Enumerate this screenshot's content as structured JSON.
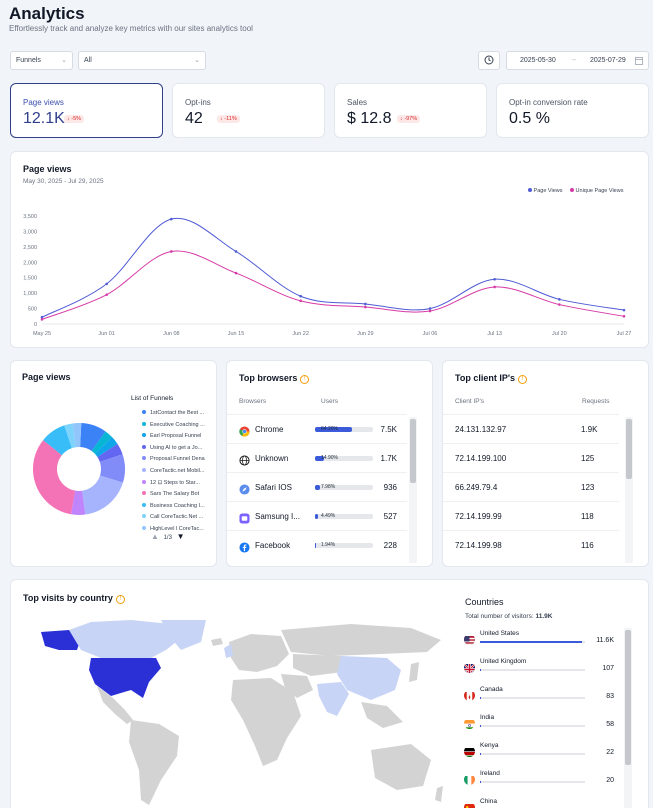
{
  "header": {
    "title": "Analytics",
    "subtitle": "Effortlessly track and analyze key metrics with our sites analytics tool"
  },
  "filters": {
    "type_select": "Funnels",
    "scope_select": "All",
    "date_start": "2025-05-30",
    "date_arrow": "→",
    "date_end": "2025-07-29"
  },
  "kpis": [
    {
      "label": "Page views",
      "value": "12.1K",
      "change": "↓ -5%"
    },
    {
      "label": "Opt-ins",
      "value": "42",
      "change": "↓ -11%"
    },
    {
      "label": "Sales",
      "value": "$ 12.8",
      "change": "↓ -97%"
    },
    {
      "label": "Opt-in conversion rate",
      "value": "0.5 %"
    }
  ],
  "page_views_chart": {
    "title": "Page views",
    "date_range": "May 30, 2025 - Jul 29, 2025",
    "colors": {
      "page_views": "#4f5bd5",
      "unique_page_views": "#d63aa6"
    }
  },
  "chart_data": {
    "type": "line",
    "x": [
      "May 25",
      "Jun 01",
      "Jun 08",
      "Jun 15",
      "Jun 22",
      "Jun 29",
      "Jul 06",
      "Jul 13",
      "Jul 20",
      "Jul 27"
    ],
    "series": [
      {
        "name": "Page Views",
        "values": [
          220,
          1300,
          3400,
          2350,
          900,
          650,
          500,
          1450,
          800,
          450
        ]
      },
      {
        "name": "Unique Page Views",
        "values": [
          150,
          950,
          2350,
          1650,
          750,
          550,
          420,
          1200,
          630,
          250
        ]
      }
    ],
    "y_ticks": [
      "0",
      "500",
      "1,000",
      "1,500",
      "2,000",
      "2,500",
      "3,000",
      "3,500"
    ],
    "ylim": [
      0,
      3500
    ],
    "legend_position": "top-right",
    "grid": false
  },
  "funnels_panel": {
    "title": "Page views",
    "list_title": "List of Funnels",
    "items": [
      {
        "label": "1stContact the Best ...",
        "color": "#3b82f6",
        "share": 0.09
      },
      {
        "label": "Executive Coaching ...",
        "color": "#06b6d4",
        "share": 0.03
      },
      {
        "label": "Earl Proposal Funnel",
        "color": "#0ea5e9",
        "share": 0.03
      },
      {
        "label": "Using AI to get a Jo...",
        "color": "#6366f1",
        "share": 0.04
      },
      {
        "label": "Proposal Funnel Dena",
        "color": "#818cf8",
        "share": 0.1
      },
      {
        "label": "CoreTactic.net Mobil...",
        "color": "#a5b4fc",
        "share": 0.18
      },
      {
        "label": "12 ⊡ Steps to Star...",
        "color": "#c084fc",
        "share": 0.05
      },
      {
        "label": "Sars The Salary Bot",
        "color": "#f472b6",
        "share": 0.33
      },
      {
        "label": "Business Coaching I...",
        "color": "#38bdf8",
        "share": 0.09
      },
      {
        "label": "Call CoreTactic.Net ...",
        "color": "#7dd3fc",
        "share": 0.03
      },
      {
        "label": "HighLevel  l CoreTac...",
        "color": "#93c5fd",
        "share": 0.03
      }
    ],
    "pager": "1/3"
  },
  "browsers": {
    "title": "Top browsers",
    "col_browsers": "Browsers",
    "col_users": "Users",
    "rows": [
      {
        "name": "Chrome",
        "pct_label": "64.20%",
        "pct": 64.2,
        "users": "7.5K",
        "icon": "chrome-icon"
      },
      {
        "name": "Unknown",
        "pct_label": "14.90%",
        "pct": 14.9,
        "users": "1.7K",
        "icon": "globe-icon"
      },
      {
        "name": "Safari IOS",
        "pct_label": "7.98%",
        "pct": 7.98,
        "users": "936",
        "icon": "safari-icon"
      },
      {
        "name": "Samsung I...",
        "pct_label": "4.49%",
        "pct": 4.49,
        "users": "527",
        "icon": "samsung-icon"
      },
      {
        "name": "Facebook",
        "pct_label": "1.94%",
        "pct": 1.94,
        "users": "228",
        "icon": "facebook-icon"
      }
    ]
  },
  "client_ips": {
    "title": "Top client IP's",
    "col_ip": "Client IP's",
    "col_requests": "Requests",
    "rows": [
      {
        "ip": "24.131.132.97",
        "requests": "1.9K"
      },
      {
        "ip": "72.14.199.100",
        "requests": "125"
      },
      {
        "ip": "66.249.79.4",
        "requests": "123"
      },
      {
        "ip": "72.14.199.99",
        "requests": "118"
      },
      {
        "ip": "72.14.199.98",
        "requests": "116"
      }
    ]
  },
  "countries": {
    "map_title": "Top visits by country",
    "title": "Countries",
    "total_label": "Total number of visitors:",
    "total_value": "11.9K",
    "rows": [
      {
        "name": "United States",
        "value": "11.6K",
        "share": 0.975
      },
      {
        "name": "United Kingdom",
        "value": "107",
        "share": 0.01
      },
      {
        "name": "Canada",
        "value": "83",
        "share": 0.008
      },
      {
        "name": "India",
        "value": "58",
        "share": 0.006
      },
      {
        "name": "Kenya",
        "value": "22",
        "share": 0.003
      },
      {
        "name": "Ireland",
        "value": "20",
        "share": 0.003
      },
      {
        "name": "China",
        "value": "",
        "share": 0.002
      }
    ]
  }
}
